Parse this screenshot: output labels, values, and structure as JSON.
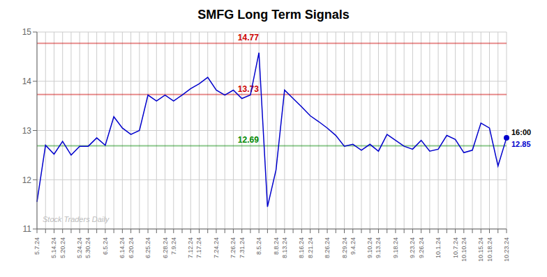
{
  "chart_data": {
    "type": "line",
    "title": "SMFG Long Term Signals",
    "categories": [
      "5.7.24",
      null,
      "5.14.24",
      "5.20.24",
      null,
      "5.24.24",
      "5.30.24",
      null,
      "6.5.24",
      null,
      "6.14.24",
      "6.20.24",
      null,
      "6.25.24",
      null,
      "6.28.24",
      "7.9.24",
      null,
      "7.12.24",
      "7.17.24",
      null,
      "7.24.24",
      null,
      "7.26.24",
      "7.31.24",
      null,
      "8.5.24",
      null,
      "8.8.24",
      "8.13.24",
      null,
      "8.16.24",
      "8.21.24",
      null,
      "8.26.24",
      null,
      "8.29.24",
      "9.4.24",
      null,
      "9.10.24",
      "9.13.24",
      null,
      "9.18.24",
      null,
      "9.23.24",
      "9.26.24",
      null,
      "10.1.24",
      null,
      "10.7.24",
      "10.10.24",
      null,
      "10.15.24",
      "10.18.24",
      null,
      "10.23.24"
    ],
    "values": [
      11.55,
      12.7,
      12.52,
      12.78,
      12.5,
      12.68,
      12.68,
      12.85,
      12.7,
      13.28,
      13.05,
      12.92,
      13.0,
      13.72,
      13.6,
      13.72,
      13.6,
      13.72,
      13.85,
      13.95,
      14.08,
      13.82,
      13.72,
      13.82,
      13.65,
      13.72,
      14.58,
      11.45,
      12.2,
      13.82,
      13.65,
      13.48,
      13.3,
      13.18,
      13.05,
      12.9,
      12.68,
      12.72,
      12.6,
      12.72,
      12.58,
      12.92,
      12.8,
      12.68,
      12.62,
      12.8,
      12.58,
      12.62,
      12.9,
      12.82,
      12.55,
      12.6,
      13.15,
      13.05,
      12.28,
      12.85
    ],
    "color": "#0000cc",
    "ylim": [
      11,
      15
    ],
    "yticks": [
      11,
      12,
      13,
      14,
      15
    ],
    "grid": true,
    "reference_lines": [
      {
        "y": 14.77,
        "label": "14.77",
        "color": "#cc0000"
      },
      {
        "y": 13.73,
        "label": "13.73",
        "color": "#cc0000"
      },
      {
        "y": 12.69,
        "label": "12.69",
        "color": "#008800"
      }
    ],
    "last_point_labels": [
      "16:00",
      "12.85"
    ],
    "watermark": "Stock Traders Daily"
  }
}
